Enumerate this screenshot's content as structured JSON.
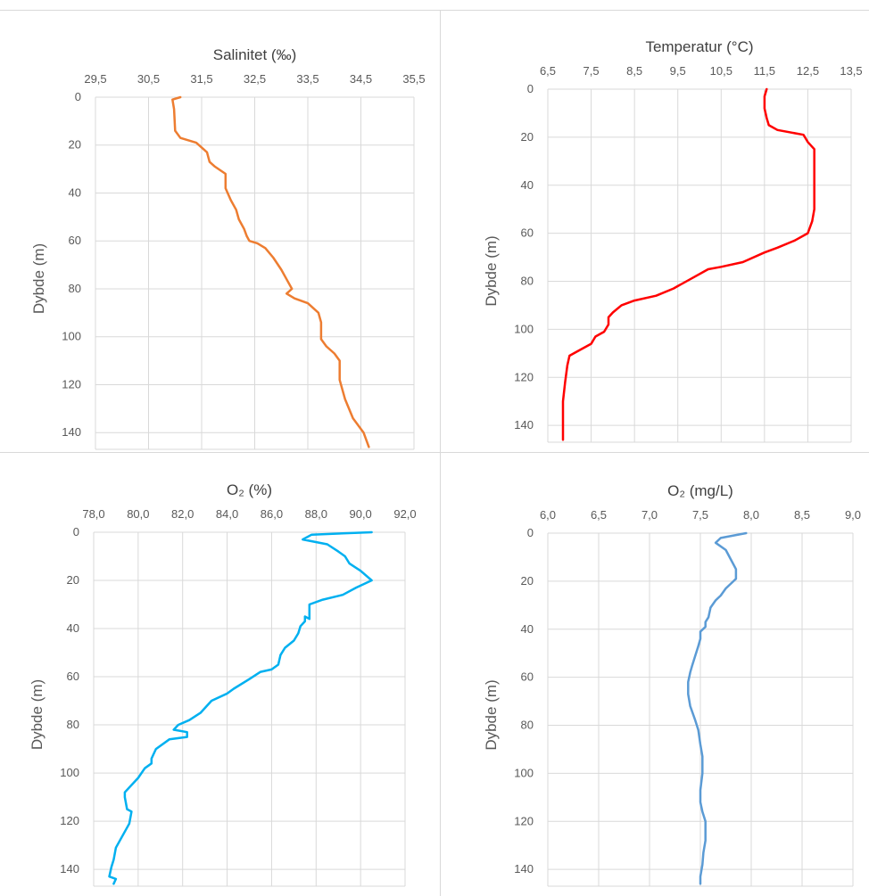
{
  "chart_data": [
    {
      "type": "line",
      "title": "Salinitet (‰)",
      "xlabel": "",
      "ylabel": "Dybde (m)",
      "x_axis_position": "top",
      "y_axis_inverted": true,
      "xlim": [
        29.5,
        35.5
      ],
      "ylim": [
        0,
        147
      ],
      "x_ticks": [
        "29,5",
        "30,5",
        "31,5",
        "32,5",
        "33,5",
        "34,5",
        "35,5"
      ],
      "y_ticks": [
        "0",
        "20",
        "40",
        "60",
        "80",
        "100",
        "120",
        "140"
      ],
      "grid": true,
      "color": "#ED7D31",
      "series": [
        {
          "x": [
            31.1,
            30.95,
            30.98,
            31.0,
            31.1,
            31.4,
            31.6,
            31.65,
            31.75,
            31.95,
            31.95,
            32.05,
            32.15,
            32.2,
            32.3,
            32.35,
            32.4,
            32.55,
            32.7,
            32.85,
            33.0,
            33.1,
            33.2,
            33.1,
            33.25,
            33.5,
            33.7,
            33.75,
            33.75,
            33.85,
            34.0,
            34.1,
            34.1,
            34.2,
            34.35,
            34.55,
            34.65
          ],
          "y": [
            0,
            1,
            5,
            14,
            17,
            19,
            23,
            27,
            29,
            32,
            38,
            43,
            47,
            51,
            55,
            58,
            60,
            61,
            63,
            67,
            72,
            76,
            80,
            82,
            84,
            86,
            90,
            94,
            101,
            104,
            107,
            110,
            118,
            126,
            134,
            140,
            146
          ]
        }
      ]
    },
    {
      "type": "line",
      "title": "Temperatur (°C)",
      "xlabel": "",
      "ylabel": "Dybde (m)",
      "x_axis_position": "top",
      "y_axis_inverted": true,
      "xlim": [
        6.5,
        13.5
      ],
      "ylim": [
        0,
        147
      ],
      "x_ticks": [
        "6,5",
        "7,5",
        "8,5",
        "9,5",
        "10,5",
        "11,5",
        "12,5",
        "13,5"
      ],
      "y_ticks": [
        "0",
        "20",
        "40",
        "60",
        "80",
        "100",
        "120",
        "140"
      ],
      "grid": true,
      "color": "#FF0000",
      "series": [
        {
          "x": [
            11.55,
            11.5,
            11.5,
            11.55,
            11.6,
            11.8,
            12.4,
            12.5,
            12.65,
            12.65,
            12.65,
            12.6,
            12.5,
            12.2,
            11.8,
            11.5,
            11.0,
            10.5,
            10.2,
            9.8,
            9.5,
            9.4,
            9.0,
            8.5,
            8.2,
            8.0,
            7.9,
            7.9,
            7.8,
            7.6,
            7.5,
            7.2,
            7.0,
            6.95,
            6.9,
            6.85,
            6.85,
            6.85
          ],
          "y": [
            0,
            3,
            8,
            12,
            15,
            17,
            19,
            22,
            25,
            35,
            50,
            55,
            60,
            63,
            66,
            68,
            72,
            74,
            75,
            79,
            82,
            83,
            86,
            88,
            90,
            93,
            95,
            98,
            101,
            103,
            106,
            109,
            111,
            115,
            122,
            130,
            140,
            146
          ]
        }
      ]
    },
    {
      "type": "line",
      "title": "O₂ (%)",
      "xlabel": "",
      "ylabel": "Dybde (m)",
      "x_axis_position": "top",
      "y_axis_inverted": true,
      "xlim": [
        78.0,
        92.0
      ],
      "ylim": [
        0,
        147
      ],
      "x_ticks": [
        "78,0",
        "80,0",
        "82,0",
        "84,0",
        "86,0",
        "88,0",
        "90,0",
        "92,0"
      ],
      "y_ticks": [
        "0",
        "20",
        "40",
        "60",
        "80",
        "100",
        "120",
        "140"
      ],
      "grid": true,
      "color": "#00B0F0",
      "series": [
        {
          "x": [
            90.5,
            87.8,
            87.4,
            88.5,
            89.0,
            89.3,
            89.5,
            90.0,
            90.5,
            89.8,
            89.2,
            88.3,
            87.7,
            87.7,
            87.5,
            87.5,
            87.3,
            87.2,
            87.0,
            86.6,
            86.4,
            86.3,
            86.0,
            85.5,
            85.0,
            84.3,
            84.0,
            83.3,
            82.8,
            82.3,
            81.8,
            81.6,
            82.2,
            82.2,
            81.4,
            80.8,
            80.6,
            80.6,
            80.3,
            80.0,
            79.8,
            79.4,
            79.4,
            79.5,
            79.7,
            79.6,
            79.3,
            79.0,
            78.9,
            78.8,
            78.7,
            79.0,
            78.9
          ],
          "y": [
            0,
            1,
            3,
            5,
            8,
            10,
            13,
            16,
            20,
            23,
            26,
            28,
            30,
            36,
            35,
            37,
            39,
            42,
            45,
            48,
            51,
            55,
            57,
            58,
            61,
            65,
            67,
            70,
            75,
            78,
            80,
            82,
            83,
            85,
            86,
            90,
            94,
            96,
            98,
            102,
            104,
            108,
            110,
            115,
            116,
            121,
            126,
            131,
            136,
            139,
            143,
            144,
            146
          ]
        }
      ]
    },
    {
      "type": "line",
      "title": "O₂ (mg/L)",
      "xlabel": "",
      "ylabel": "Dybde (m)",
      "x_axis_position": "top",
      "y_axis_inverted": true,
      "xlim": [
        6.0,
        9.0
      ],
      "ylim": [
        0,
        147
      ],
      "x_ticks": [
        "6,0",
        "6,5",
        "7,0",
        "7,5",
        "8,0",
        "8,5",
        "9,0"
      ],
      "y_ticks": [
        "0",
        "20",
        "40",
        "60",
        "80",
        "100",
        "120",
        "140"
      ],
      "grid": true,
      "color": "#5B9BD5",
      "series": [
        {
          "x": [
            7.95,
            7.7,
            7.65,
            7.75,
            7.8,
            7.85,
            7.85,
            7.8,
            7.75,
            7.7,
            7.65,
            7.6,
            7.58,
            7.55,
            7.55,
            7.5,
            7.5,
            7.48,
            7.45,
            7.42,
            7.4,
            7.38,
            7.38,
            7.4,
            7.45,
            7.48,
            7.5,
            7.52,
            7.52,
            7.5,
            7.5,
            7.52,
            7.55,
            7.55,
            7.55,
            7.53,
            7.52,
            7.5,
            7.5
          ],
          "y": [
            0,
            2,
            4,
            7,
            11,
            15,
            19,
            21,
            23,
            26,
            28,
            31,
            35,
            37,
            39,
            41,
            44,
            47,
            51,
            55,
            58,
            62,
            67,
            72,
            78,
            82,
            88,
            93,
            100,
            107,
            112,
            116,
            120,
            124,
            128,
            133,
            138,
            143,
            146
          ]
        }
      ]
    }
  ]
}
